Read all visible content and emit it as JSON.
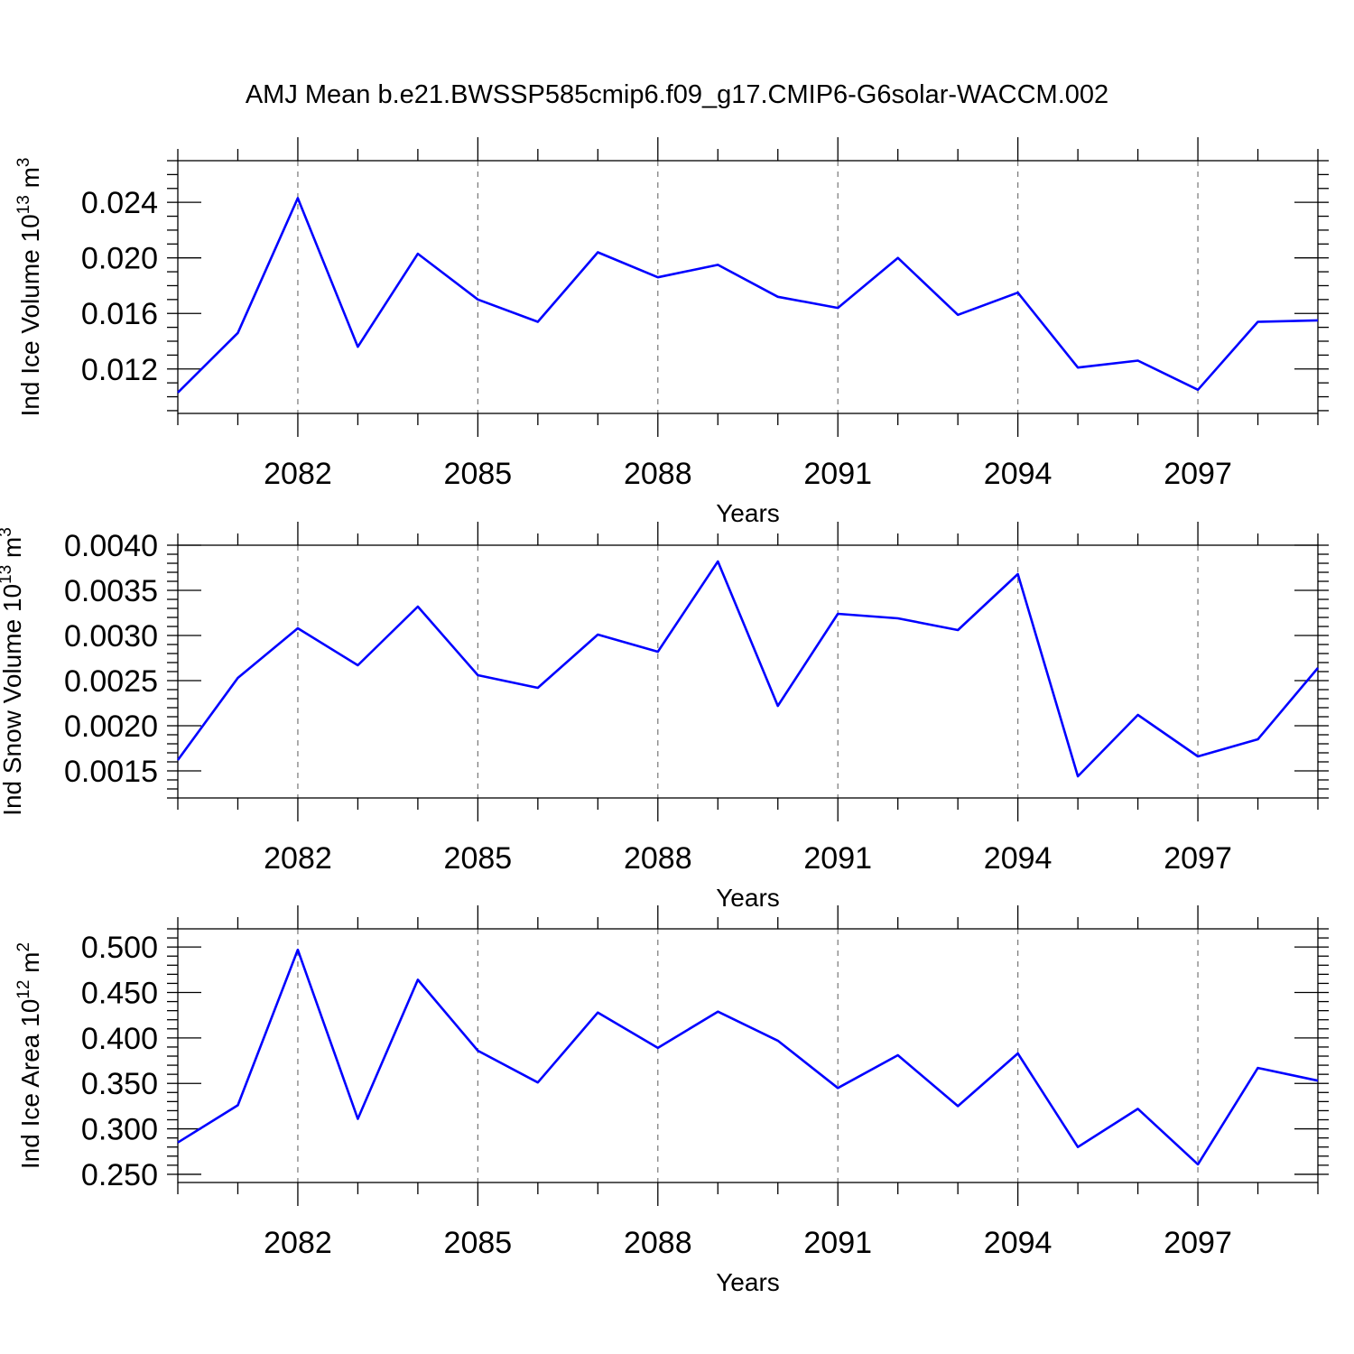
{
  "title": "AMJ Mean b.e21.BWSSP585cmip6.f09_g17.CMIP6-G6solar-WACCM.002",
  "colors": {
    "line": "#0000ff",
    "grid": "#777777",
    "axes": "#000000"
  },
  "chart_data": [
    {
      "type": "line",
      "xlabel": "Years",
      "ylabel": {
        "main": "Ind Ice Volume 10",
        "exp": "13",
        "unit_main": " m",
        "unit_exp": "3"
      },
      "xlim": [
        2080,
        2099
      ],
      "ylim": [
        0.0088,
        0.027
      ],
      "x_ticks": [
        2082,
        2085,
        2088,
        2091,
        2094,
        2097
      ],
      "x_tick_labels": [
        "2082",
        "2085",
        "2088",
        "2091",
        "2094",
        "2097"
      ],
      "y_ticks": [
        0.012,
        0.016,
        0.02,
        0.024
      ],
      "y_tick_labels": [
        "0.012",
        "0.016",
        "0.020",
        "0.024"
      ],
      "y_minor_step": 0.001,
      "grid": "x-major dashed",
      "x": [
        2080,
        2081,
        2082,
        2083,
        2084,
        2085,
        2086,
        2087,
        2088,
        2089,
        2090,
        2091,
        2092,
        2093,
        2094,
        2095,
        2096,
        2097,
        2098,
        2099
      ],
      "values": [
        0.0103,
        0.0146,
        0.0243,
        0.0136,
        0.0203,
        0.017,
        0.0154,
        0.0204,
        0.0186,
        0.0195,
        0.0172,
        0.0164,
        0.02,
        0.0159,
        0.0175,
        0.0121,
        0.0126,
        0.0105,
        0.0154,
        0.0155
      ]
    },
    {
      "type": "line",
      "xlabel": "Years",
      "ylabel": {
        "main": "Ind Snow Volume 10",
        "exp": "13",
        "unit_main": " m",
        "unit_exp": "3"
      },
      "xlim": [
        2080,
        2099
      ],
      "ylim": [
        0.0012,
        0.004
      ],
      "x_ticks": [
        2082,
        2085,
        2088,
        2091,
        2094,
        2097
      ],
      "x_tick_labels": [
        "2082",
        "2085",
        "2088",
        "2091",
        "2094",
        "2097"
      ],
      "y_ticks": [
        0.0015,
        0.002,
        0.0025,
        0.003,
        0.0035,
        0.004
      ],
      "y_tick_labels": [
        "0.0015",
        "0.0020",
        "0.0025",
        "0.0030",
        "0.0035",
        "0.0040"
      ],
      "y_minor_step": 0.0001,
      "grid": "x-major dashed",
      "x": [
        2080,
        2081,
        2082,
        2083,
        2084,
        2085,
        2086,
        2087,
        2088,
        2089,
        2090,
        2091,
        2092,
        2093,
        2094,
        2095,
        2096,
        2097,
        2098,
        2099
      ],
      "values": [
        0.00162,
        0.00253,
        0.00308,
        0.00267,
        0.00332,
        0.00256,
        0.00242,
        0.00301,
        0.00282,
        0.00382,
        0.00222,
        0.00324,
        0.00319,
        0.00306,
        0.00368,
        0.00144,
        0.00212,
        0.00166,
        0.00185,
        0.00264
      ]
    },
    {
      "type": "line",
      "xlabel": "Years",
      "ylabel": {
        "main": "Ind Ice Area 10",
        "exp": "12",
        "unit_main": " m",
        "unit_exp": "2"
      },
      "xlim": [
        2080,
        2099
      ],
      "ylim": [
        0.241,
        0.52
      ],
      "x_ticks": [
        2082,
        2085,
        2088,
        2091,
        2094,
        2097
      ],
      "x_tick_labels": [
        "2082",
        "2085",
        "2088",
        "2091",
        "2094",
        "2097"
      ],
      "y_ticks": [
        0.25,
        0.3,
        0.35,
        0.4,
        0.45,
        0.5
      ],
      "y_tick_labels": [
        "0.250",
        "0.300",
        "0.350",
        "0.400",
        "0.450",
        "0.500"
      ],
      "y_minor_step": 0.01,
      "grid": "x-major dashed",
      "x": [
        2080,
        2081,
        2082,
        2083,
        2084,
        2085,
        2086,
        2087,
        2088,
        2089,
        2090,
        2091,
        2092,
        2093,
        2094,
        2095,
        2096,
        2097,
        2098,
        2099
      ],
      "values": [
        0.285,
        0.326,
        0.497,
        0.311,
        0.464,
        0.386,
        0.351,
        0.428,
        0.389,
        0.429,
        0.397,
        0.345,
        0.381,
        0.325,
        0.383,
        0.28,
        0.322,
        0.261,
        0.367,
        0.353
      ]
    }
  ]
}
